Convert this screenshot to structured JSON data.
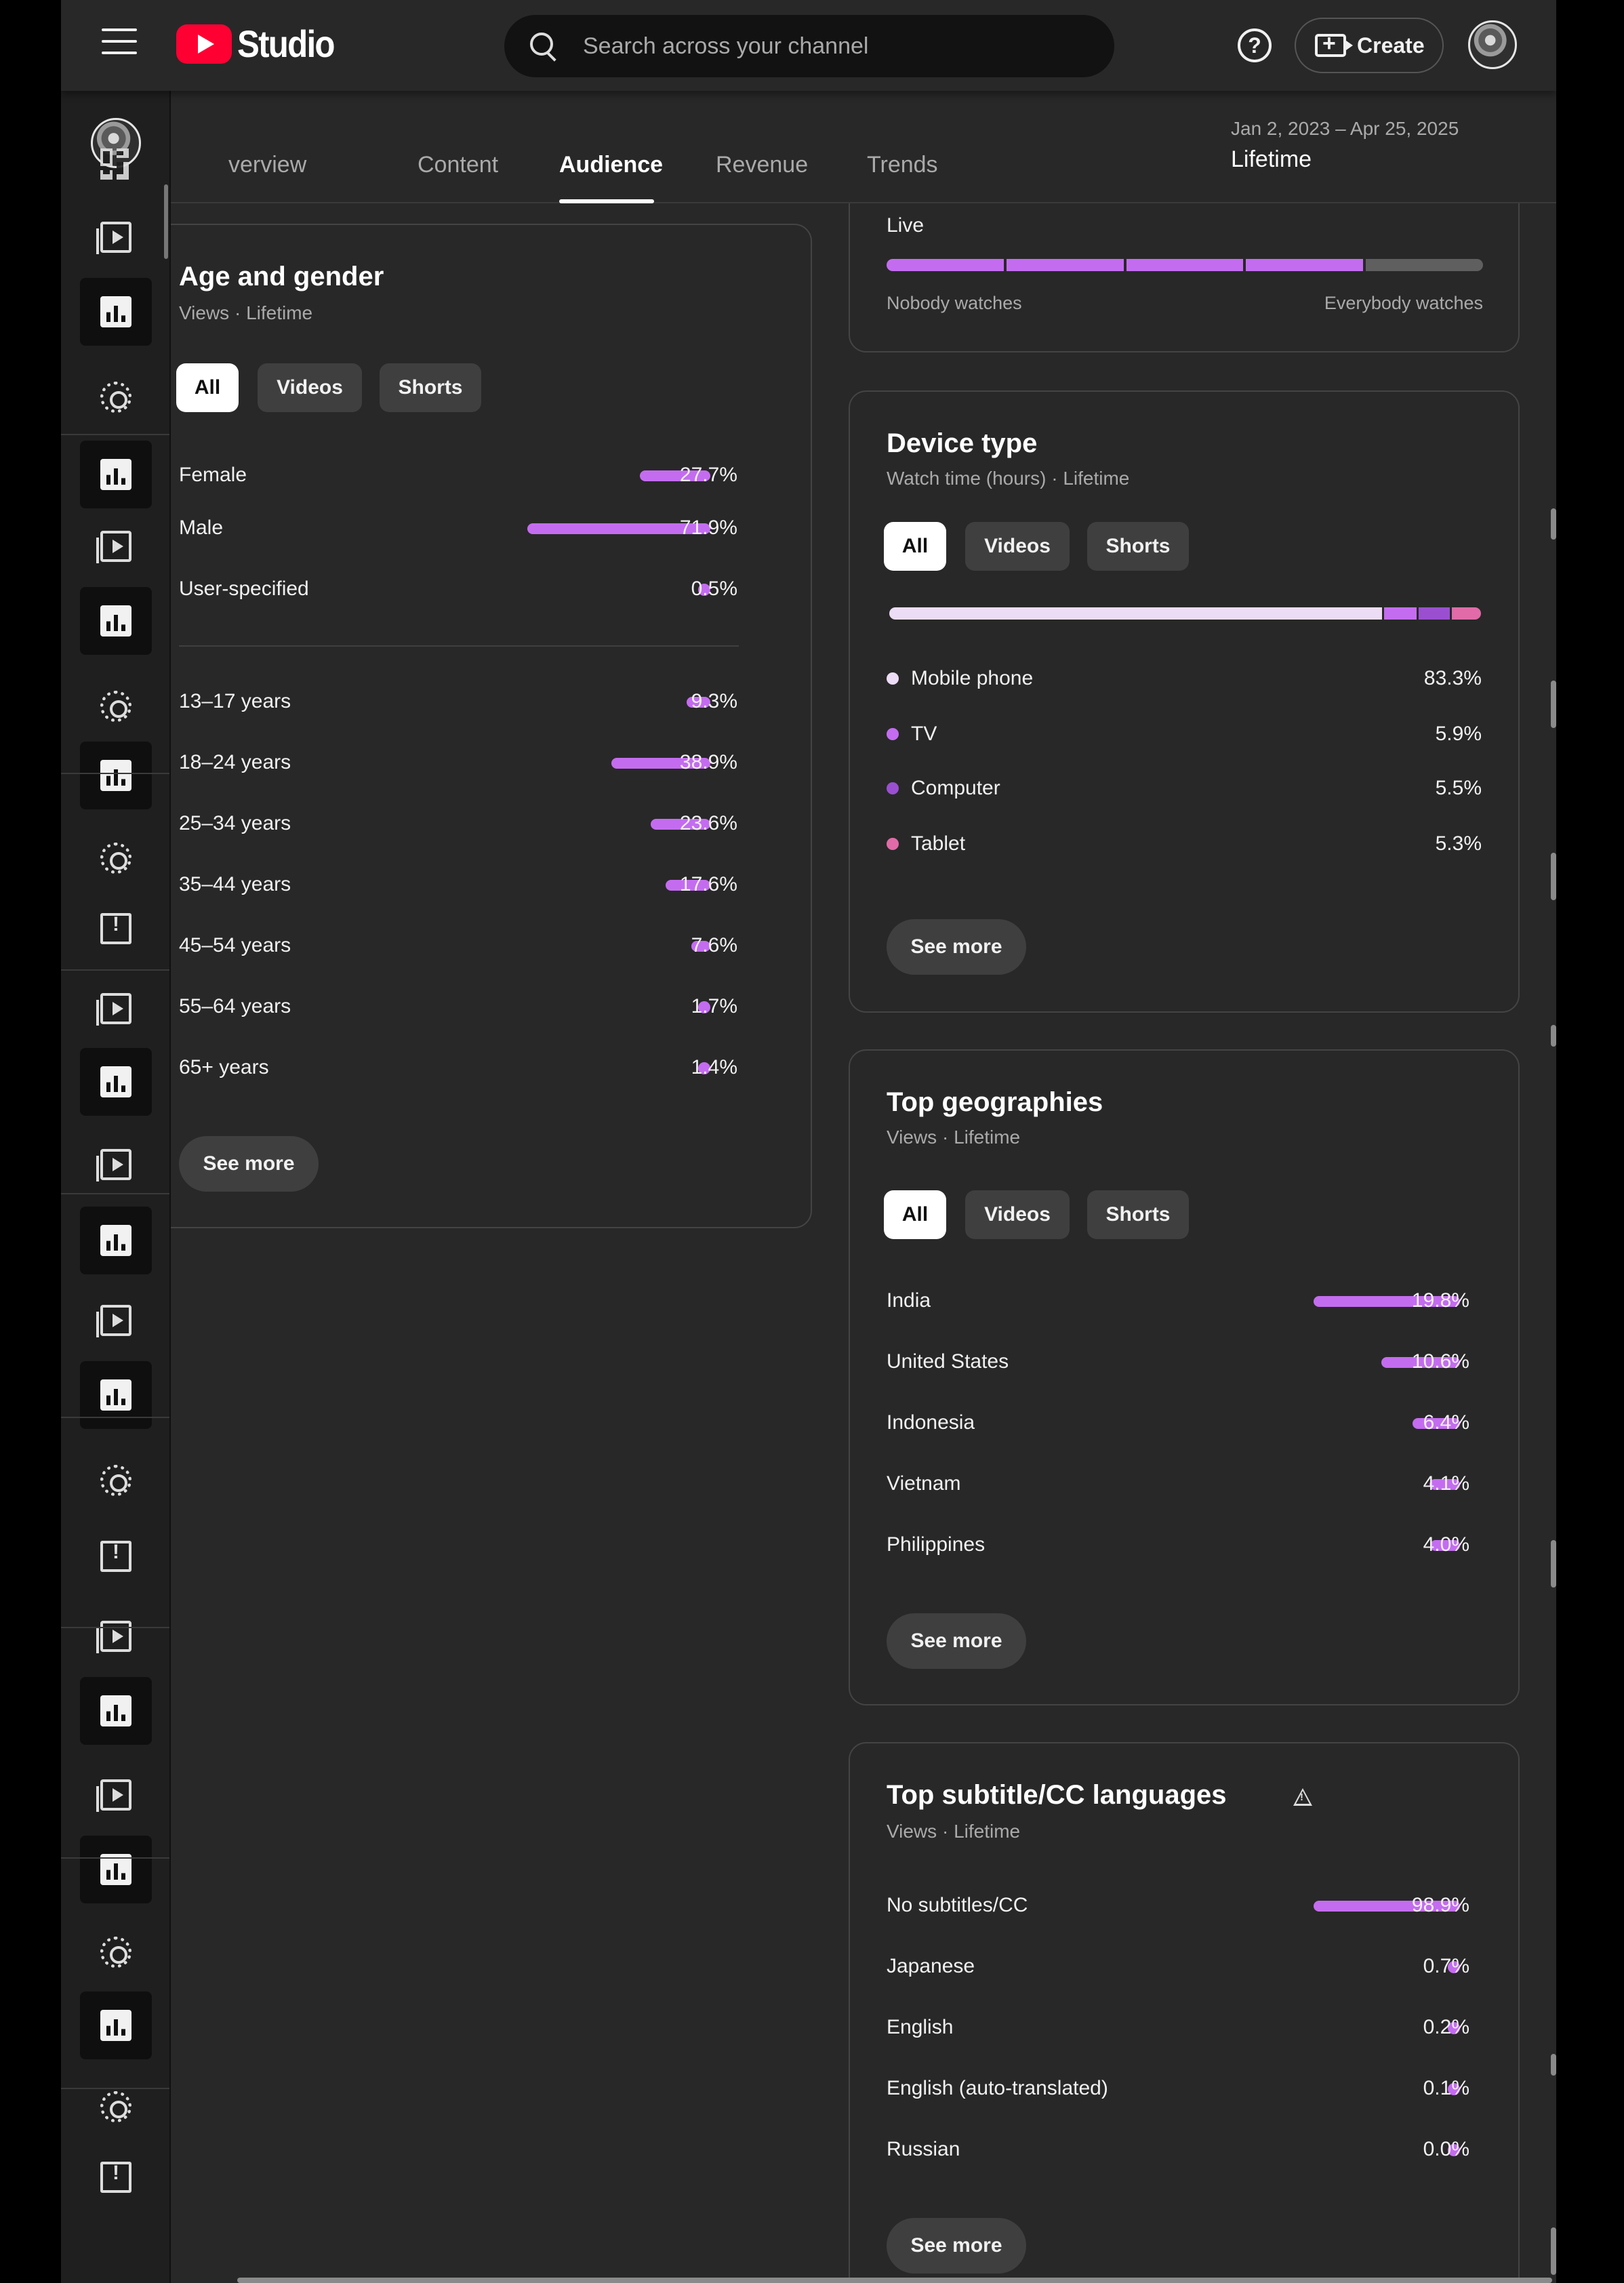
{
  "header": {
    "logo_text": "Studio",
    "search_placeholder": "Search across your channel",
    "help_label": "?",
    "create_label": "Create"
  },
  "tabs": {
    "items": [
      "verview",
      "Content",
      "Audience",
      "Revenue",
      "Trends"
    ],
    "active": "Audience"
  },
  "date_range": {
    "range": "Jan 2, 2023 – Apr 25, 2025",
    "label": "Lifetime"
  },
  "live_card": {
    "label": "Live",
    "min_label": "Nobody watches",
    "max_label": "Everybody watches",
    "segments_filled": 4,
    "segments_total": 5
  },
  "age_gender": {
    "title": "Age and gender",
    "subtitle": "Views · Lifetime",
    "filters": [
      "All",
      "Videos",
      "Shorts"
    ],
    "active_filter": "All",
    "gender": [
      {
        "label": "Female",
        "value": "27.7%",
        "pct": 27.7
      },
      {
        "label": "Male",
        "value": "71.9%",
        "pct": 71.9
      },
      {
        "label": "User-specified",
        "value": "0.5%",
        "pct": 0.5
      }
    ],
    "age": [
      {
        "label": "13–17 years",
        "value": "9.3%",
        "pct": 9.3
      },
      {
        "label": "18–24 years",
        "value": "38.9%",
        "pct": 38.9
      },
      {
        "label": "25–34 years",
        "value": "23.6%",
        "pct": 23.6
      },
      {
        "label": "35–44 years",
        "value": "17.6%",
        "pct": 17.6
      },
      {
        "label": "45–54 years",
        "value": "7.6%",
        "pct": 7.6
      },
      {
        "label": "55–64 years",
        "value": "1.7%",
        "pct": 1.7
      },
      {
        "label": "65+ years",
        "value": "1.4%",
        "pct": 1.4
      }
    ],
    "see_more": "See more"
  },
  "device_type": {
    "title": "Device type",
    "subtitle": "Watch time (hours) · Lifetime",
    "filters": [
      "All",
      "Videos",
      "Shorts"
    ],
    "active_filter": "All",
    "items": [
      {
        "label": "Mobile phone",
        "value": "83.3%",
        "pct": 83.3,
        "color": "#ecdcf5"
      },
      {
        "label": "TV",
        "value": "5.9%",
        "pct": 5.9,
        "color": "#c46cf0"
      },
      {
        "label": "Computer",
        "value": "5.5%",
        "pct": 5.5,
        "color": "#9a4fd0"
      },
      {
        "label": "Tablet",
        "value": "5.3%",
        "pct": 5.3,
        "color": "#e06ba8"
      }
    ],
    "see_more": "See more"
  },
  "top_geographies": {
    "title": "Top geographies",
    "subtitle": "Views · Lifetime",
    "filters": [
      "All",
      "Videos",
      "Shorts"
    ],
    "active_filter": "All",
    "items": [
      {
        "label": "India",
        "value": "19.8%",
        "pct": 19.8
      },
      {
        "label": "United States",
        "value": "10.6%",
        "pct": 10.6
      },
      {
        "label": "Indonesia",
        "value": "6.4%",
        "pct": 6.4
      },
      {
        "label": "Vietnam",
        "value": "4.1%",
        "pct": 4.1
      },
      {
        "label": "Philippines",
        "value": "4.0%",
        "pct": 4.0
      }
    ],
    "see_more": "See more"
  },
  "top_subtitles": {
    "title": "Top subtitle/CC languages",
    "subtitle": "Views · Lifetime",
    "items": [
      {
        "label": "No subtitles/CC",
        "value": "98.9%",
        "pct": 98.9
      },
      {
        "label": "Japanese",
        "value": "0.7%",
        "pct": 0.7
      },
      {
        "label": "English",
        "value": "0.2%",
        "pct": 0.2
      },
      {
        "label": "English (auto-translated)",
        "value": "0.1%",
        "pct": 0.1
      },
      {
        "label": "Russian",
        "value": "0.0%",
        "pct": 0.0
      }
    ],
    "see_more": "See more"
  },
  "colors": {
    "accent_bar": "#c46cf0",
    "background": "#282828",
    "sidebar": "#1f1f1f"
  },
  "sidebar_icons": [
    "dashboard-icon",
    "content-icon",
    "analytics-icon",
    "settings-icon",
    "analytics-icon",
    "content-icon",
    "analytics-icon",
    "settings-icon",
    "analytics-icon",
    "settings-icon",
    "feedback-icon",
    "content-icon",
    "analytics-icon",
    "content-icon",
    "analytics-icon",
    "content-icon",
    "analytics-icon",
    "settings-icon",
    "feedback-icon",
    "content-icon",
    "analytics-icon",
    "content-icon",
    "analytics-icon",
    "settings-icon",
    "analytics-icon",
    "settings-icon",
    "feedback-icon"
  ]
}
